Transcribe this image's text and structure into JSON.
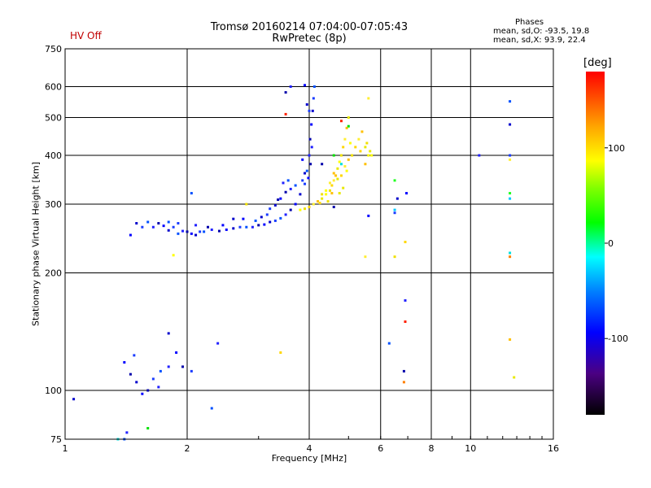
{
  "status": {
    "hv_label": "HV Off",
    "hv_color": "#c00000"
  },
  "phases": {
    "title": "Phases",
    "o_line": "mean, sd,O: -93.5, 19.8",
    "x_line": "mean, sd,X:  93.9, 22.4"
  },
  "colorbar": {
    "unit": "[deg]",
    "ticks": [
      {
        "label": "100",
        "value": 100
      },
      {
        "label": "0",
        "value": 0
      },
      {
        "label": "-100",
        "value": -100
      }
    ],
    "range": [
      -180,
      180
    ]
  },
  "chart_data": {
    "type": "scatter",
    "title": "Tromsø 20160214 07:04:00-07:05:43",
    "subtitle": "RwPretec (8p)",
    "xlabel": "Frequency [MHz]",
    "ylabel": "Stationary phase Virtual Height [km]",
    "xscale": "log",
    "yscale": "log",
    "xlim": [
      1,
      16
    ],
    "ylim": [
      75,
      750
    ],
    "grid": true,
    "x_ticks": [
      {
        "label": "1",
        "value": 1
      },
      {
        "label": "2",
        "value": 2
      },
      {
        "label": "4",
        "value": 4
      },
      {
        "label": "6",
        "value": 6
      },
      {
        "label": "8",
        "value": 8
      },
      {
        "label": "10",
        "value": 10
      },
      {
        "label": "16",
        "value": 16
      }
    ],
    "y_ticks": [
      {
        "label": "75",
        "value": 75
      },
      {
        "label": "100",
        "value": 100
      },
      {
        "label": "200",
        "value": 200
      },
      {
        "label": "300",
        "value": 300
      },
      {
        "label": "400",
        "value": 400
      },
      {
        "label": "500",
        "value": 500
      },
      {
        "label": "600",
        "value": 600
      },
      {
        "label": "750",
        "value": 750
      }
    ],
    "series": [
      {
        "name": "O-mode trace (blue)",
        "phase_mean": -93.5,
        "phase_sd": 19.8,
        "points": [
          [
            1.45,
            250
          ],
          [
            1.5,
            268
          ],
          [
            1.55,
            262
          ],
          [
            1.6,
            270
          ],
          [
            1.65,
            262
          ],
          [
            1.7,
            268
          ],
          [
            1.75,
            264
          ],
          [
            1.8,
            257
          ],
          [
            1.85,
            262
          ],
          [
            1.9,
            252
          ],
          [
            1.95,
            256
          ],
          [
            2.0,
            255
          ],
          [
            2.05,
            252
          ],
          [
            2.1,
            250
          ],
          [
            2.15,
            255
          ],
          [
            2.2,
            255
          ],
          [
            2.3,
            258
          ],
          [
            2.4,
            256
          ],
          [
            2.5,
            258
          ],
          [
            2.6,
            260
          ],
          [
            2.7,
            262
          ],
          [
            2.8,
            262
          ],
          [
            2.9,
            262
          ],
          [
            3.0,
            265
          ],
          [
            3.1,
            266
          ],
          [
            3.2,
            270
          ],
          [
            3.3,
            272
          ],
          [
            3.4,
            276
          ],
          [
            3.5,
            282
          ],
          [
            3.6,
            290
          ],
          [
            3.7,
            300
          ],
          [
            3.8,
            318
          ],
          [
            3.9,
            338
          ],
          [
            3.95,
            365
          ],
          [
            4.0,
            400
          ],
          [
            4.02,
            440
          ],
          [
            4.05,
            480
          ],
          [
            4.08,
            520
          ],
          [
            4.1,
            560
          ],
          [
            4.12,
            600
          ],
          [
            4.06,
            420
          ],
          [
            4.03,
            380
          ],
          [
            3.98,
            350
          ],
          [
            3.9,
            360
          ],
          [
            3.85,
            345
          ],
          [
            3.7,
            335
          ],
          [
            3.6,
            328
          ],
          [
            3.5,
            322
          ],
          [
            3.4,
            310
          ],
          [
            3.3,
            298
          ],
          [
            3.2,
            292
          ],
          [
            3.55,
            345
          ],
          [
            3.45,
            340
          ],
          [
            3.35,
            308
          ],
          [
            2.75,
            275
          ],
          [
            2.6,
            275
          ],
          [
            1.9,
            268
          ],
          [
            1.8,
            270
          ],
          [
            2.1,
            265
          ],
          [
            2.25,
            262
          ],
          [
            2.45,
            265
          ],
          [
            3.05,
            278
          ],
          [
            3.15,
            282
          ],
          [
            2.95,
            272
          ],
          [
            3.6,
            600
          ],
          [
            3.5,
            580
          ],
          [
            3.9,
            605
          ],
          [
            3.95,
            540
          ],
          [
            4.0,
            520
          ],
          [
            2.05,
            320
          ],
          [
            1.7,
            102
          ],
          [
            1.6,
            100
          ],
          [
            1.55,
            98
          ],
          [
            1.5,
            105
          ],
          [
            1.65,
            107
          ],
          [
            1.72,
            112
          ],
          [
            1.8,
            115
          ],
          [
            1.45,
            110
          ],
          [
            1.4,
            118
          ],
          [
            1.05,
            95
          ],
          [
            2.05,
            112
          ],
          [
            2.3,
            90
          ],
          [
            2.38,
            132
          ],
          [
            1.95,
            115
          ],
          [
            1.88,
            125
          ],
          [
            1.8,
            140
          ],
          [
            1.48,
            123
          ],
          [
            1.4,
            75
          ],
          [
            1.42,
            78
          ],
          [
            4.6,
            295
          ],
          [
            5.6,
            280
          ],
          [
            6.6,
            310
          ],
          [
            6.5,
            285
          ],
          [
            6.3,
            132
          ],
          [
            6.9,
            170
          ],
          [
            6.85,
            112
          ],
          [
            6.95,
            320
          ],
          [
            12.5,
            480
          ],
          [
            12.5,
            400
          ],
          [
            12.5,
            550
          ],
          [
            10.5,
            400
          ],
          [
            4.3,
            380
          ],
          [
            3.85,
            390
          ]
        ]
      },
      {
        "name": "X-mode trace (yellow)",
        "phase_mean": 93.9,
        "phase_sd": 22.4,
        "points": [
          [
            3.8,
            290
          ],
          [
            3.9,
            292
          ],
          [
            4.0,
            295
          ],
          [
            4.1,
            300
          ],
          [
            4.2,
            305
          ],
          [
            4.3,
            310
          ],
          [
            4.4,
            318
          ],
          [
            4.5,
            325
          ],
          [
            4.55,
            335
          ],
          [
            4.6,
            345
          ],
          [
            4.65,
            355
          ],
          [
            4.7,
            370
          ],
          [
            4.75,
            385
          ],
          [
            4.8,
            400
          ],
          [
            4.85,
            420
          ],
          [
            4.9,
            440
          ],
          [
            4.95,
            470
          ],
          [
            5.0,
            500
          ],
          [
            5.05,
            430
          ],
          [
            5.1,
            400
          ],
          [
            5.2,
            420
          ],
          [
            5.3,
            440
          ],
          [
            5.4,
            460
          ],
          [
            5.5,
            420
          ],
          [
            5.6,
            400
          ],
          [
            5.55,
            430
          ],
          [
            5.35,
            410
          ],
          [
            4.5,
            340
          ],
          [
            4.6,
            360
          ],
          [
            4.7,
            348
          ],
          [
            4.4,
            325
          ],
          [
            4.3,
            318
          ],
          [
            4.8,
            355
          ],
          [
            4.9,
            375
          ],
          [
            5.0,
            390
          ],
          [
            4.85,
            330
          ],
          [
            4.95,
            365
          ],
          [
            4.45,
            305
          ],
          [
            4.25,
            302
          ],
          [
            5.6,
            560
          ],
          [
            5.5,
            380
          ],
          [
            5.65,
            410
          ],
          [
            5.7,
            400
          ],
          [
            6.5,
            220
          ],
          [
            6.9,
            240
          ],
          [
            12.5,
            390
          ],
          [
            12.5,
            135
          ],
          [
            12.8,
            108
          ],
          [
            1.85,
            222
          ],
          [
            2.8,
            300
          ],
          [
            3.4,
            125
          ],
          [
            5.5,
            220
          ],
          [
            4.55,
            320
          ],
          [
            4.75,
            320
          ]
        ]
      },
      {
        "name": "Other echoes (red / green / cyan)",
        "points": [
          [
            4.8,
            490
          ],
          [
            4.6,
            400
          ],
          [
            4.8,
            380
          ],
          [
            6.85,
            105
          ],
          [
            12.5,
            320
          ],
          [
            12.5,
            310
          ],
          [
            3.5,
            510
          ],
          [
            5.0,
            475
          ],
          [
            12.5,
            225
          ],
          [
            12.5,
            220
          ],
          [
            6.5,
            345
          ],
          [
            6.5,
            290
          ],
          [
            6.9,
            150
          ],
          [
            1.6,
            80
          ],
          [
            1.35,
            75
          ]
        ]
      }
    ]
  }
}
